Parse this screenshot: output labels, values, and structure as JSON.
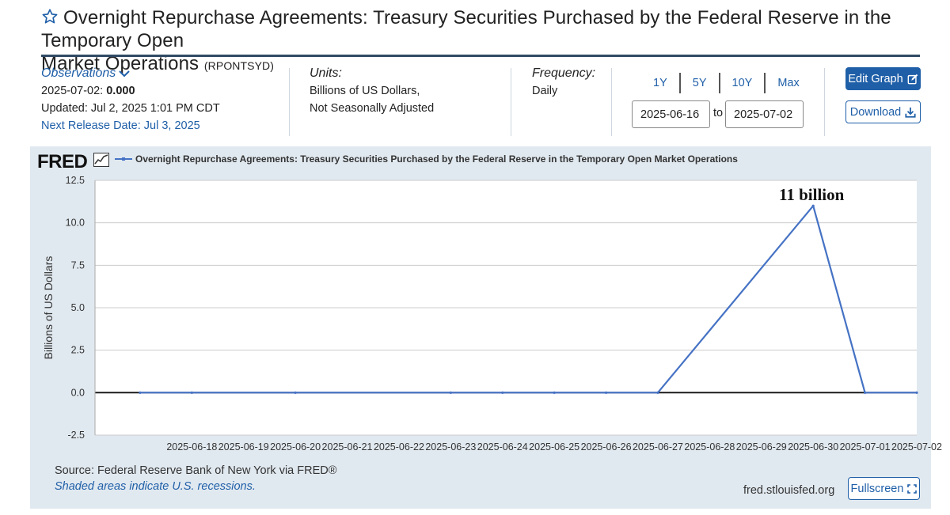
{
  "header": {
    "title": "Overnight Repurchase Agreements: Treasury Securities Purchased by the Federal Reserve in the Temporary Open Market Operations",
    "title_line1": "Overnight Repurchase Agreements: Treasury Securities Purchased by the Federal Reserve in the Temporary Open",
    "title_line2": "Market Operations",
    "series_id": "(RPONTSYD)",
    "favorite_icon": "star-outline-icon"
  },
  "observations": {
    "toggle_label": "Observations",
    "toggle_icon": "chevron-down-icon",
    "latest_date": "2025-07-02:",
    "latest_value": "0.000",
    "updated": "Updated: Jul 2, 2025 1:01 PM CDT",
    "next_release": "Next Release Date: Jul 3, 2025"
  },
  "units": {
    "label": "Units:",
    "line1": "Billions of US Dollars,",
    "line2": "Not Seasonally Adjusted"
  },
  "frequency": {
    "label": "Frequency:",
    "value": "Daily"
  },
  "date_range": {
    "buttons": [
      "1Y",
      "5Y",
      "10Y",
      "Max"
    ],
    "start": "2025-06-16",
    "to_label": "to",
    "end": "2025-07-02"
  },
  "actions": {
    "edit_graph": "Edit Graph",
    "edit_icon": "edit-square-icon",
    "download": "Download",
    "download_icon": "download-icon",
    "fullscreen": "Fullscreen",
    "fullscreen_icon": "expand-icon"
  },
  "graph": {
    "logo": "FRED",
    "source": "Source: Federal Reserve Bank of New York via FRED®",
    "shaded_note": "Shaded areas indicate U.S. recessions.",
    "site": "fred.stlouisfed.org",
    "line_color": "#4572c4",
    "background_color": "#e1e9f0"
  },
  "chart_data": {
    "type": "line",
    "title": "",
    "xlabel": "",
    "ylabel": "Billions of US Dollars",
    "ylim": [
      -2.5,
      12.5
    ],
    "yticks": [
      "12.5",
      "10.0",
      "7.5",
      "5.0",
      "2.5",
      "0.0",
      "-2.5"
    ],
    "xticks": [
      "2025-06-18",
      "2025-06-19",
      "2025-06-20",
      "2025-06-21",
      "2025-06-22",
      "2025-06-23",
      "2025-06-24",
      "2025-06-25",
      "2025-06-26",
      "2025-06-27",
      "2025-06-28",
      "2025-06-29",
      "2025-06-30",
      "2025-07-01",
      "2025-07-02"
    ],
    "grid": true,
    "series": [
      {
        "name": "Overnight Repurchase Agreements: Treasury Securities Purchased by the Federal Reserve in the Temporary Open Market Operations",
        "x": [
          "2025-06-17",
          "2025-06-18",
          "2025-06-20",
          "2025-06-23",
          "2025-06-24",
          "2025-06-25",
          "2025-06-26",
          "2025-06-27",
          "2025-06-30",
          "2025-07-01",
          "2025-07-02"
        ],
        "values": [
          0,
          0,
          0,
          0,
          0,
          0,
          0,
          0,
          11,
          0,
          0
        ]
      }
    ],
    "annotations": [
      {
        "text": "11 billion",
        "x": "2025-06-30",
        "y": 11
      }
    ]
  }
}
